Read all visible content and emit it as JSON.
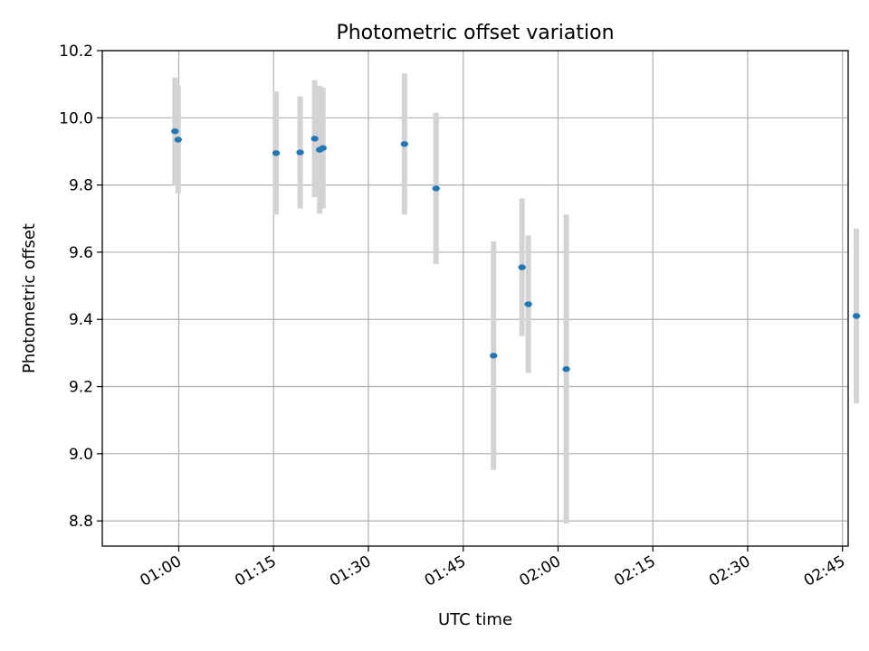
{
  "chart_data": {
    "type": "scatter",
    "title": "Photometric offset variation",
    "xlabel": "UTC time",
    "ylabel": "Photometric offset",
    "grid": true,
    "x_unit": "minutes after 00:00 UTC",
    "xlim": [
      47.9,
      165.9
    ],
    "ylim": [
      8.725,
      10.2
    ],
    "xticks": [
      {
        "value": 60,
        "label": "01:00"
      },
      {
        "value": 75,
        "label": "01:15"
      },
      {
        "value": 90,
        "label": "01:30"
      },
      {
        "value": 105,
        "label": "01:45"
      },
      {
        "value": 120,
        "label": "02:00"
      },
      {
        "value": 135,
        "label": "02:15"
      },
      {
        "value": 150,
        "label": "02:30"
      },
      {
        "value": 165,
        "label": "02:45"
      }
    ],
    "yticks": [
      {
        "value": 8.8,
        "label": "8.8"
      },
      {
        "value": 9.0,
        "label": "9.0"
      },
      {
        "value": 9.2,
        "label": "9.2"
      },
      {
        "value": 9.4,
        "label": "9.4"
      },
      {
        "value": 9.6,
        "label": "9.6"
      },
      {
        "value": 9.8,
        "label": "9.8"
      },
      {
        "value": 10.0,
        "label": "10.0"
      },
      {
        "value": 10.2,
        "label": "10.2"
      }
    ],
    "series": [
      {
        "name": "Photometric offset",
        "marker_color": "#1f77b4",
        "errorbar_color": "#d3d3d3",
        "points": [
          {
            "x": 59.4,
            "y": 9.96,
            "err": 0.16
          },
          {
            "x": 59.9,
            "y": 9.935,
            "err": 0.16
          },
          {
            "x": 75.4,
            "y": 9.895,
            "err": 0.183
          },
          {
            "x": 79.2,
            "y": 9.897,
            "err": 0.167
          },
          {
            "x": 81.5,
            "y": 9.938,
            "err": 0.174
          },
          {
            "x": 82.3,
            "y": 9.905,
            "err": 0.19
          },
          {
            "x": 82.8,
            "y": 9.91,
            "err": 0.18
          },
          {
            "x": 95.7,
            "y": 9.922,
            "err": 0.21
          },
          {
            "x": 100.7,
            "y": 9.79,
            "err": 0.225
          },
          {
            "x": 109.8,
            "y": 9.292,
            "err": 0.34
          },
          {
            "x": 114.3,
            "y": 9.555,
            "err": 0.205
          },
          {
            "x": 115.3,
            "y": 9.445,
            "err": 0.205
          },
          {
            "x": 121.3,
            "y": 9.252,
            "err": 0.46
          },
          {
            "x": 167.2,
            "y": 9.41,
            "err": 0.26
          }
        ]
      }
    ]
  }
}
